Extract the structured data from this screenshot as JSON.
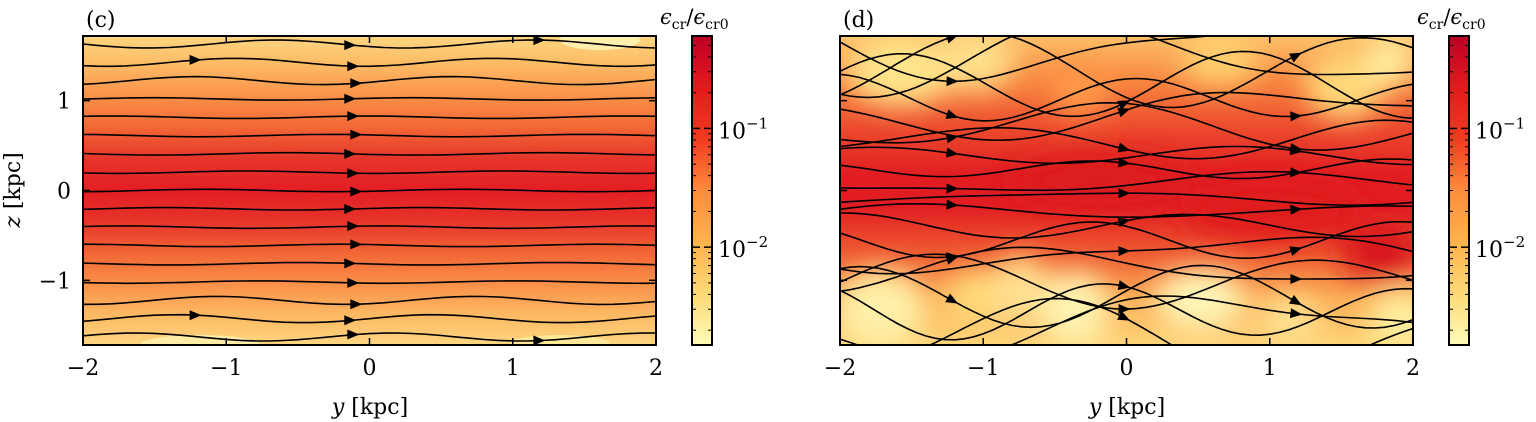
{
  "chart_data": [
    {
      "type": "heatmap",
      "panel_label": "(c)",
      "xlabel": "y [kpc]",
      "ylabel": "z [kpc]",
      "xlim": [
        -2,
        2
      ],
      "ylim": [
        -1.72,
        1.72
      ],
      "x_ticks": [
        -2,
        -1,
        0,
        1,
        2
      ],
      "x_tick_labels": [
        "−2",
        "−1",
        "0",
        "1",
        "2"
      ],
      "y_ticks": [
        1,
        0,
        -1
      ],
      "y_tick_labels": [
        "1",
        "0",
        "−1"
      ],
      "colorbar": {
        "title": "ϵcr/ϵcr0",
        "scale": "log",
        "range": [
          0.0015,
          0.6
        ],
        "ticks": [
          0.1,
          0.01
        ],
        "tick_labels": [
          "10−1",
          "10−2"
        ],
        "colormap": [
          "#fffbb8",
          "#fed976",
          "#feb24c",
          "#fd8d3c",
          "#f03b20",
          "#e31a1c",
          "#bd0026"
        ]
      },
      "field": "smooth, horizontally uniform; peak at z = 0, decreasing toward |z| = 1.7",
      "streamlines": "horizontal, flowing in +y direction"
    },
    {
      "type": "heatmap",
      "panel_label": "(d)",
      "xlabel": "y [kpc]",
      "xlim": [
        -2,
        2
      ],
      "ylim": [
        -1.72,
        1.72
      ],
      "x_ticks": [
        -2,
        -1,
        0,
        1,
        2
      ],
      "x_tick_labels": [
        "−2",
        "−1",
        "0",
        "1",
        "2"
      ],
      "colorbar": {
        "title": "ϵcr/ϵcr0",
        "scale": "log",
        "range": [
          0.0015,
          0.6
        ],
        "ticks": [
          0.1,
          0.01
        ],
        "tick_labels": [
          "10−1",
          "10−2"
        ],
        "colormap": [
          "#fffbb8",
          "#fed976",
          "#feb24c",
          "#fd8d3c",
          "#f03b20",
          "#e31a1c",
          "#bd0026"
        ]
      },
      "field": "turbulent; red band near z = 0 with yellow patches near the boundaries",
      "streamlines": "tangled, generally flowing in +y direction"
    }
  ]
}
